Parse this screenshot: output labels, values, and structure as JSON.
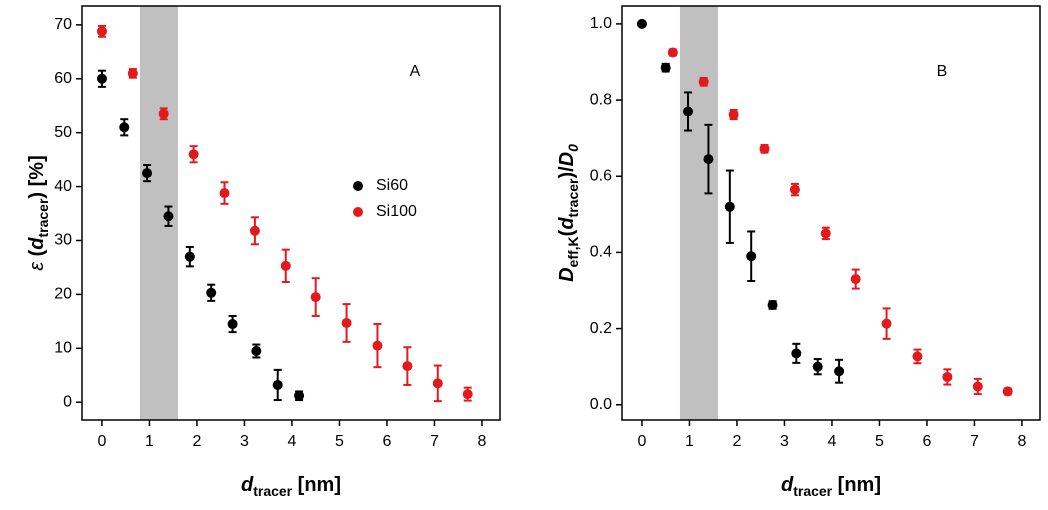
{
  "chart_data": [
    {
      "type": "scatter",
      "annotation": "A",
      "xlabel": [
        "d",
        "tracer",
        " [nm]"
      ],
      "ylabel": [
        "ε",
        " (",
        "d",
        "tracer",
        ") [%]"
      ],
      "xlim": [
        -0.42,
        8.38
      ],
      "ylim": [
        -3.3,
        73.5
      ],
      "xticks": [
        0,
        1,
        2,
        3,
        4,
        5,
        6,
        7,
        8
      ],
      "yticks": [
        0,
        10,
        20,
        30,
        40,
        50,
        60,
        70
      ],
      "shade_x": [
        0.8,
        1.6
      ],
      "shade_color": "#c0c0c0",
      "legend": "center",
      "series": [
        {
          "name": "Si60",
          "color": "#000000",
          "x": [
            0,
            0.47,
            0.95,
            1.4,
            1.85,
            2.3,
            2.75,
            3.25,
            3.7,
            4.15
          ],
          "values": [
            60,
            51,
            42.5,
            34.5,
            27,
            20.3,
            14.5,
            9.5,
            3.2,
            1.2
          ],
          "errors": [
            1.5,
            1.5,
            1.5,
            1.8,
            1.8,
            1.5,
            1.5,
            1.2,
            2.8,
            0.8
          ]
        },
        {
          "name": "Si100",
          "color": "#e31a1c",
          "x": [
            0,
            0.65,
            1.3,
            1.93,
            2.58,
            3.22,
            3.87,
            4.5,
            5.15,
            5.8,
            6.43,
            7.07,
            7.7
          ],
          "values": [
            68.8,
            61,
            53.5,
            46,
            38.8,
            31.8,
            25.3,
            19.5,
            14.7,
            10.5,
            6.7,
            3.5,
            1.5
          ],
          "errors": [
            1,
            0.8,
            1,
            1.5,
            2,
            2.5,
            3,
            3.5,
            3.5,
            4,
            3.5,
            3.3,
            1.2
          ]
        }
      ]
    },
    {
      "type": "scatter",
      "annotation": "B",
      "xlabel": [
        "d",
        "tracer",
        " [nm]"
      ],
      "ylabel": [
        "D",
        "eff,K",
        "(",
        "d",
        "tracer",
        ")/",
        "D",
        "0"
      ],
      "xlim": [
        -0.42,
        8.38
      ],
      "ylim": [
        -0.04,
        1.047
      ],
      "xticks": [
        0,
        1,
        2,
        3,
        4,
        5,
        6,
        7,
        8
      ],
      "yticks": [
        {
          "value": 0,
          "label": "0.0"
        },
        0.2,
        0.4,
        0.6,
        0.8,
        {
          "value": 1,
          "label": "1.0"
        }
      ],
      "shade_x": [
        0.8,
        1.6
      ],
      "shade_color": "#c0c0c0",
      "series": [
        {
          "name": "Si60",
          "color": "#000000",
          "x": [
            0,
            0.5,
            0.97,
            1.4,
            1.85,
            2.3,
            2.75,
            3.25,
            3.7,
            4.15
          ],
          "values": [
            1.0,
            0.885,
            0.77,
            0.645,
            0.52,
            0.39,
            0.262,
            0.135,
            0.1,
            0.088
          ],
          "errors": [
            0,
            0.01,
            0.05,
            0.09,
            0.095,
            0.065,
            0.01,
            0.025,
            0.02,
            0.03
          ]
        },
        {
          "name": "Si100",
          "color": "#e31a1c",
          "x": [
            0.65,
            1.3,
            1.93,
            2.58,
            3.22,
            3.87,
            4.5,
            5.15,
            5.8,
            6.43,
            7.07,
            7.7
          ],
          "values": [
            0.925,
            0.848,
            0.762,
            0.672,
            0.565,
            0.45,
            0.33,
            0.213,
            0.127,
            0.073,
            0.048,
            0.035
          ],
          "errors": [
            0.008,
            0.01,
            0.012,
            0.01,
            0.015,
            0.015,
            0.025,
            0.04,
            0.018,
            0.02,
            0.02,
            0.008
          ]
        }
      ]
    }
  ]
}
